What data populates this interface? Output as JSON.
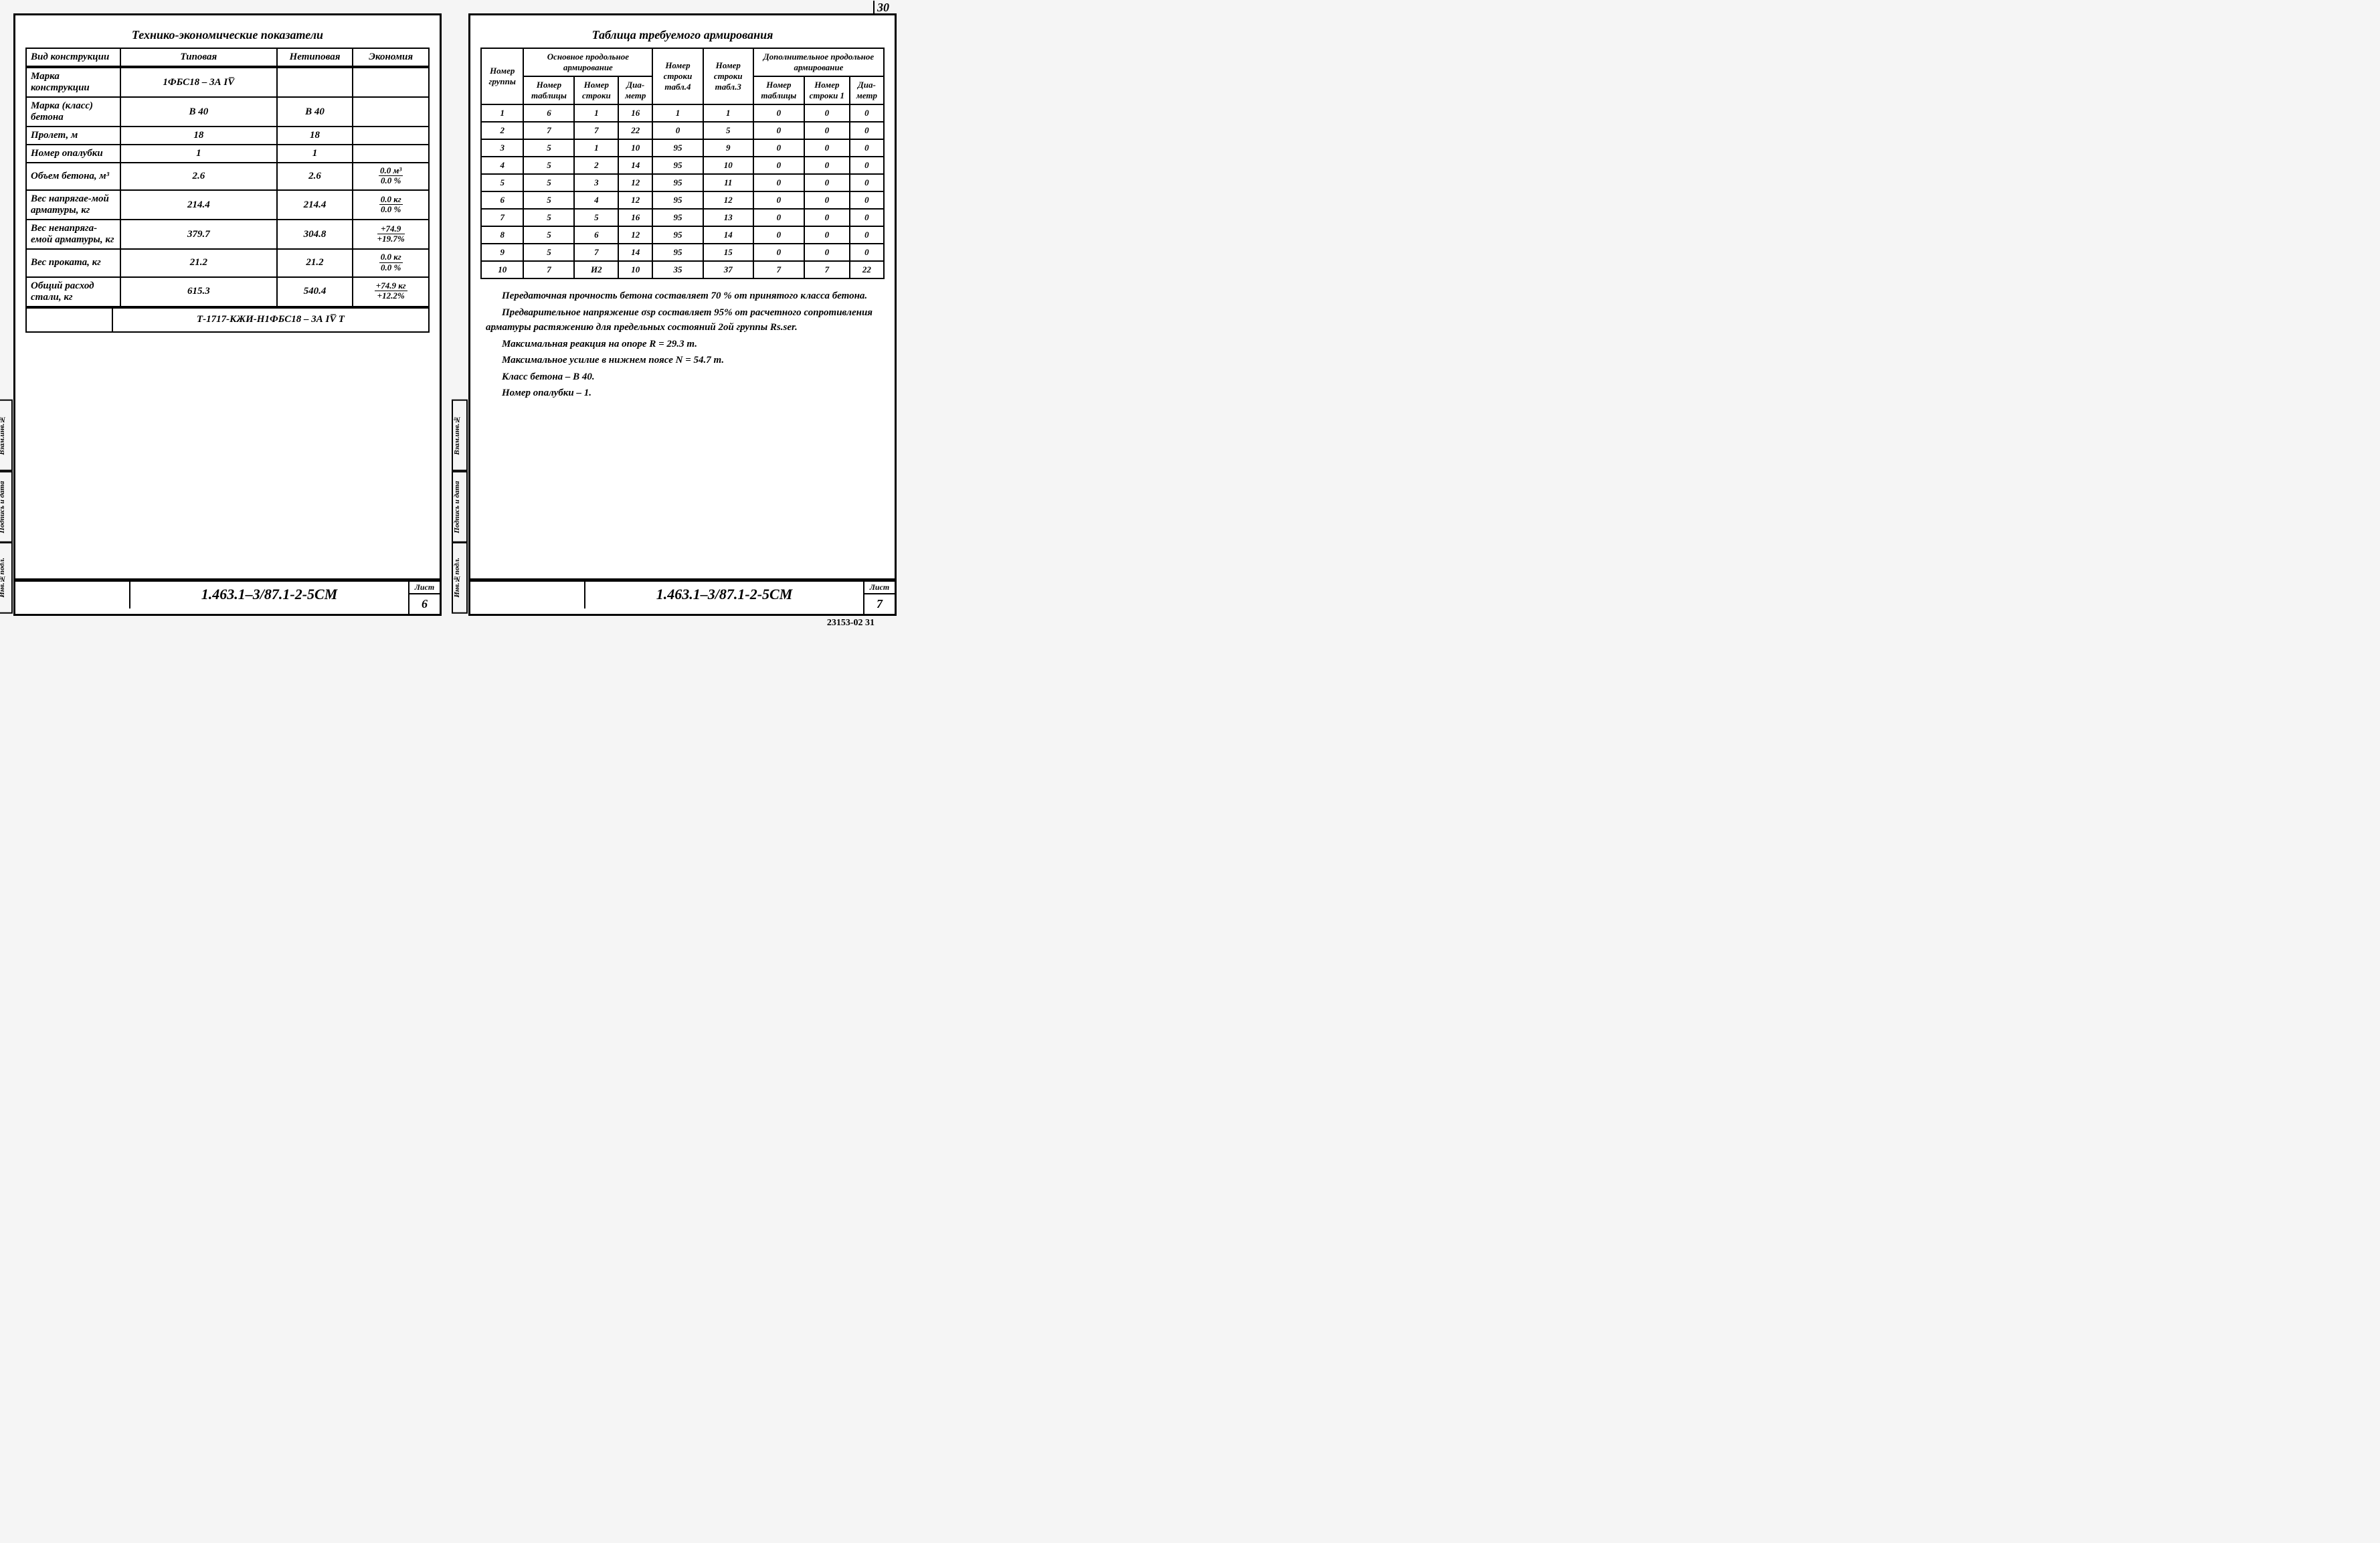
{
  "left": {
    "title": "Технико-экономические показатели",
    "headers": [
      "Вид конструкции",
      "Типовая",
      "Нетиповая",
      "Экономия"
    ],
    "rows": [
      {
        "label": "Марка конструкции",
        "typical": "1ФБС18 – 3А IV̅",
        "nontypical": "",
        "econ": ""
      },
      {
        "label": "Марка (класс) бетона",
        "typical": "В 40",
        "nontypical": "В 40",
        "econ": ""
      },
      {
        "label": "Пролет, м",
        "typical": "18",
        "nontypical": "18",
        "econ": ""
      },
      {
        "label": "Номер опалубки",
        "typical": "1",
        "nontypical": "1",
        "econ": ""
      },
      {
        "label": "Объем бетона, м³",
        "typical": "2.6",
        "nontypical": "2.6",
        "econ_top": "0.0 м³",
        "econ_bot": "0.0 %"
      },
      {
        "label": "Вес напрягае-мой арматуры, кг",
        "typical": "214.4",
        "nontypical": "214.4",
        "econ_top": "0.0 кг",
        "econ_bot": "0.0 %"
      },
      {
        "label": "Вес ненапряга-емой арматуры, кг",
        "typical": "379.7",
        "nontypical": "304.8",
        "econ_top": "+74.9",
        "econ_bot": "+19.7%"
      },
      {
        "label": "Вес проката, кг",
        "typical": "21.2",
        "nontypical": "21.2",
        "econ_top": "0.0 кг",
        "econ_bot": "0.0 %"
      },
      {
        "label": "Общий расход стали, кг",
        "typical": "615.3",
        "nontypical": "540.4",
        "econ_top": "+74.9 кг",
        "econ_bot": "+12.2%"
      }
    ],
    "spec": "Т-1717-КЖИ-Н1ФБС18 – 3А IV̅ Т",
    "doc_code": "1.463.1–3/87.1-2-5СМ",
    "sheet_label": "Лист",
    "sheet_num": "6",
    "side": [
      "Инв.№подл.",
      "Подпись и дата",
      "Взам.инв.№"
    ]
  },
  "right": {
    "page_top": "30",
    "title": "Таблица требуемого армирования",
    "group_header": "Номер группы",
    "main_header": "Основное продольное армирование",
    "col_t4": "Номер строки табл.4",
    "col_t3": "Номер строки табл.3",
    "addl_header": "Дополнительное продольное армирование",
    "sub_cols": [
      "Номер таблицы",
      "Номер строки",
      "Диа-метр"
    ],
    "sub_cols2": [
      "Номер таблицы",
      "Номер строки 1",
      "Диа-метр"
    ],
    "rows": [
      [
        "1",
        "6",
        "1",
        "16",
        "1",
        "1",
        "0",
        "0",
        "0"
      ],
      [
        "2",
        "7",
        "7",
        "22",
        "0",
        "5",
        "0",
        "0",
        "0"
      ],
      [
        "3",
        "5",
        "1",
        "10",
        "95",
        "9",
        "0",
        "0",
        "0"
      ],
      [
        "4",
        "5",
        "2",
        "14",
        "95",
        "10",
        "0",
        "0",
        "0"
      ],
      [
        "5",
        "5",
        "3",
        "12",
        "95",
        "11",
        "0",
        "0",
        "0"
      ],
      [
        "6",
        "5",
        "4",
        "12",
        "95",
        "12",
        "0",
        "0",
        "0"
      ],
      [
        "7",
        "5",
        "5",
        "16",
        "95",
        "13",
        "0",
        "0",
        "0"
      ],
      [
        "8",
        "5",
        "6",
        "12",
        "95",
        "14",
        "0",
        "0",
        "0"
      ],
      [
        "9",
        "5",
        "7",
        "14",
        "95",
        "15",
        "0",
        "0",
        "0"
      ],
      [
        "10",
        "7",
        "И2",
        "10",
        "35",
        "37",
        "7",
        "7",
        "22"
      ]
    ],
    "notes": [
      "Передаточная прочность бетона составляет 70 % от принятого класса бетона.",
      "Предварительное напряжение σsp составляет 95% от расчетного сопротивления арматуры растяжению для предельных состояний 2ой группы Rs.ser.",
      "Максимальная реакция на опоре R = 29.3 т.",
      "Максимальное усилие в нижнем поясе N = 54.7 т.",
      "Класс бетона – В 40.",
      "Номер опалубки – 1."
    ],
    "doc_code": "1.463.1–3/87.1-2-5СМ",
    "sheet_label": "Лист",
    "sheet_num": "7",
    "side": [
      "Инв.№подл.",
      "Подпись и дата",
      "Взам.инв.№"
    ],
    "bottom_ref": "23153-02   31"
  }
}
